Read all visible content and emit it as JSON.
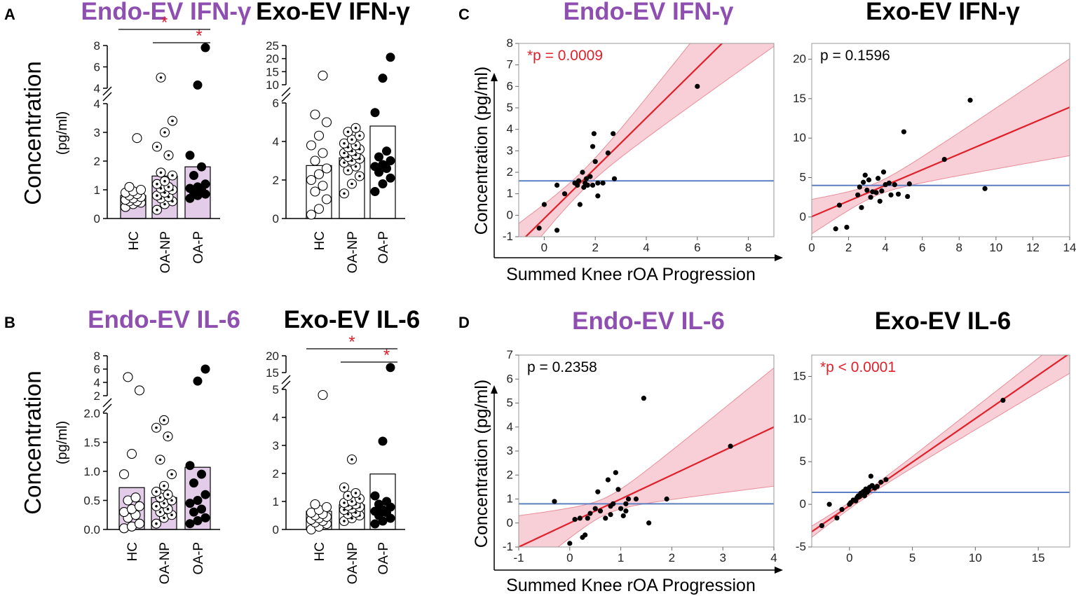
{
  "panel_labels": [
    "A",
    "B",
    "C",
    "D"
  ],
  "colors": {
    "purple": "#8E4FB0",
    "bar_fill": "#E2CCE8",
    "red": "#E0202A",
    "band": "#F7C7CF",
    "band_edge": "#E88E9B",
    "mean_line": "#5B7FC4"
  },
  "labels": {
    "concentration": "Concentration",
    "unit": "(pg/ml)",
    "concentration_unit": "Concentration (pg/ml)",
    "x_title": "Summed Knee rOA Progression",
    "star": "*"
  },
  "chart_data": [
    {
      "id": "A-endo-ifng",
      "type": "bar",
      "title": "Endo-EV IFN-γ",
      "title_color": "#8E4FB0",
      "ylabel": "Concentration (pg/ml)",
      "categories": [
        "HC",
        "OA-NP",
        "OA-P"
      ],
      "values": [
        0.8,
        1.48,
        1.8
      ],
      "marker_styles": [
        "open",
        "dot",
        "filled"
      ],
      "bar_color": "#E2CCE8",
      "y_break": {
        "lower": [
          0,
          4
        ],
        "upper": [
          4,
          8
        ]
      },
      "yticks_lower": [
        "0",
        "1",
        "2",
        "3",
        "4"
      ],
      "yticks_upper": [
        "4",
        "6",
        "8"
      ],
      "points": [
        [
          0.4,
          0.5,
          0.55,
          0.6,
          0.6,
          0.65,
          0.7,
          0.75,
          0.8,
          0.85,
          0.9,
          0.95,
          1.0,
          1.1,
          2.8
        ],
        [
          0.3,
          0.5,
          0.6,
          0.7,
          0.75,
          0.8,
          0.9,
          1.0,
          1.05,
          1.1,
          1.2,
          1.3,
          1.5,
          1.6,
          2.2,
          2.5,
          3.0,
          3.4,
          5.0
        ],
        [
          0.7,
          0.8,
          0.85,
          0.9,
          1.0,
          1.05,
          1.1,
          1.2,
          1.5,
          1.8,
          2.2,
          4.3,
          7.8
        ]
      ],
      "significance": [
        {
          "from": "HC",
          "to": "OA-P",
          "label": "*"
        },
        {
          "from": "OA-NP",
          "to": "OA-P",
          "label": "*"
        }
      ]
    },
    {
      "id": "A-exo-ifng",
      "type": "bar",
      "title": "Exo-EV IFN-γ",
      "title_color": "#000000",
      "categories": [
        "HC",
        "OA-NP",
        "OA-P"
      ],
      "values": [
        2.75,
        3.15,
        4.8
      ],
      "marker_styles": [
        "open",
        "dot",
        "filled"
      ],
      "bar_color": "#FFFFFF",
      "y_break": {
        "lower": [
          0,
          6
        ],
        "upper": [
          10,
          25
        ]
      },
      "yticks_lower": [
        "0",
        "2",
        "4",
        "6"
      ],
      "yticks_upper": [
        "10",
        "15",
        "20",
        "25"
      ],
      "points": [
        [
          0.2,
          0.5,
          1.0,
          1.4,
          1.7,
          2.0,
          2.3,
          2.6,
          3.0,
          3.4,
          3.8,
          4.3,
          5.0,
          5.4,
          13.5
        ],
        [
          1.3,
          1.8,
          2.2,
          2.5,
          2.7,
          2.9,
          3.0,
          3.1,
          3.2,
          3.3,
          3.4,
          3.5,
          3.6,
          3.7,
          3.8,
          3.9,
          4.1,
          4.3,
          4.5,
          4.7
        ],
        [
          1.4,
          1.8,
          2.1,
          2.4,
          2.6,
          2.7,
          2.8,
          3.0,
          3.2,
          3.5,
          5.5,
          12.5,
          20.5
        ]
      ],
      "significance": []
    },
    {
      "id": "B-endo-il6",
      "type": "bar",
      "title": "Endo-EV IL-6",
      "title_color": "#8E4FB0",
      "ylabel": "Concentration (pg/ml)",
      "categories": [
        "HC",
        "OA-NP",
        "OA-P"
      ],
      "values": [
        0.72,
        0.55,
        1.07
      ],
      "marker_styles": [
        "open",
        "dot",
        "filled"
      ],
      "bar_color": "#E2CCE8",
      "y_break": {
        "lower": [
          0,
          2
        ],
        "upper": [
          2,
          8
        ]
      },
      "yticks_lower": [
        "0.0",
        "0.5",
        "1.0",
        "1.5",
        "2.0"
      ],
      "yticks_upper": [
        "2",
        "4",
        "6",
        "8"
      ],
      "points": [
        [
          0.02,
          0.05,
          0.1,
          0.2,
          0.25,
          0.3,
          0.35,
          0.4,
          0.5,
          0.55,
          0.95,
          1.3,
          2.8,
          4.8
        ],
        [
          0.1,
          0.2,
          0.25,
          0.3,
          0.35,
          0.4,
          0.45,
          0.5,
          0.55,
          0.6,
          0.65,
          0.75,
          0.95,
          1.2,
          1.6,
          1.75,
          1.88
        ],
        [
          0.1,
          0.15,
          0.2,
          0.3,
          0.35,
          0.45,
          0.5,
          0.6,
          0.8,
          0.95,
          1.1,
          4.2,
          6.0
        ]
      ],
      "significance": []
    },
    {
      "id": "B-exo-il6",
      "type": "bar",
      "title": "Exo-EV IL-6",
      "title_color": "#000000",
      "categories": [
        "HC",
        "OA-NP",
        "OA-P"
      ],
      "values": [
        0.65,
        0.88,
        1.98
      ],
      "marker_styles": [
        "open",
        "dot",
        "filled"
      ],
      "bar_color": "#FFFFFF",
      "y_break": {
        "lower": [
          0,
          5
        ],
        "upper": [
          15,
          20
        ]
      },
      "yticks_lower": [
        "0",
        "1",
        "2",
        "3",
        "4",
        "5"
      ],
      "yticks_upper": [
        "15",
        "20"
      ],
      "points": [
        [
          0.0,
          0.1,
          0.2,
          0.25,
          0.3,
          0.35,
          0.4,
          0.45,
          0.5,
          0.55,
          0.6,
          0.7,
          0.8,
          0.9,
          4.8
        ],
        [
          0.3,
          0.4,
          0.5,
          0.55,
          0.6,
          0.7,
          0.75,
          0.8,
          0.85,
          0.9,
          0.95,
          1.0,
          1.1,
          1.2,
          1.3,
          1.5,
          2.5
        ],
        [
          0.2,
          0.3,
          0.4,
          0.5,
          0.6,
          0.65,
          0.7,
          0.8,
          0.9,
          1.0,
          1.2,
          3.15,
          16.5
        ]
      ],
      "significance": [
        {
          "from": "HC",
          "to": "OA-P",
          "label": "*"
        },
        {
          "from": "OA-NP",
          "to": "OA-P",
          "label": "*"
        }
      ]
    },
    {
      "id": "C-endo-ifng",
      "type": "scatter",
      "title": "Endo-EV IFN-γ",
      "title_color": "#8E4FB0",
      "xlabel": "Summed Knee rOA Progression",
      "ylabel": "Concentration (pg/ml)",
      "xlim": [
        -1,
        9
      ],
      "ylim": [
        -1,
        8
      ],
      "xticks": [
        0,
        2,
        4,
        6,
        8
      ],
      "yticks": [
        -1,
        0,
        1,
        2,
        3,
        4,
        5,
        6,
        7,
        8
      ],
      "p_label": "*p = 0.0009",
      "p_color": "#E0202A",
      "mean": 1.6,
      "fit": {
        "slope": 1.17,
        "intercept": -0.15
      },
      "band": {
        "x0": 1.5,
        "w0": 0.45,
        "k": 0.33
      },
      "points": [
        [
          -0.2,
          -0.6
        ],
        [
          0.5,
          -0.7
        ],
        [
          0,
          0.5
        ],
        [
          0.5,
          1.4
        ],
        [
          0.8,
          1.0
        ],
        [
          1.2,
          1.5
        ],
        [
          1.3,
          1.4
        ],
        [
          1.35,
          1.6
        ],
        [
          1.4,
          0.5
        ],
        [
          1.5,
          2.0
        ],
        [
          1.55,
          1.3
        ],
        [
          1.6,
          1.5
        ],
        [
          1.65,
          1.7
        ],
        [
          1.7,
          1.4
        ],
        [
          1.8,
          1.8
        ],
        [
          1.9,
          3.2
        ],
        [
          1.95,
          3.8
        ],
        [
          2.0,
          2.5
        ],
        [
          2.1,
          1.5
        ],
        [
          2.1,
          0.9
        ],
        [
          2.3,
          1.5
        ],
        [
          2.5,
          2.9
        ],
        [
          2.7,
          3.8
        ],
        [
          2.75,
          1.7
        ],
        [
          1.9,
          1.4
        ],
        [
          6.0,
          6.0
        ]
      ]
    },
    {
      "id": "C-exo-ifng",
      "type": "scatter",
      "title": "Exo-EV IFN-γ",
      "title_color": "#000000",
      "xlim": [
        0,
        14
      ],
      "ylim": [
        -2.5,
        22
      ],
      "xticks": [
        0,
        2,
        4,
        6,
        8,
        10,
        12,
        14
      ],
      "yticks": [
        0,
        5,
        10,
        15,
        20
      ],
      "p_label": "p = 0.1596",
      "p_color": "#000000",
      "mean": 4.0,
      "fit": {
        "slope": 0.99,
        "intercept": 0.05
      },
      "band": {
        "x0": 3.5,
        "w0": 0.8,
        "k": 0.58
      },
      "points": [
        [
          1.3,
          -1.5
        ],
        [
          1.5,
          1.5
        ],
        [
          1.9,
          -1.3
        ],
        [
          2.5,
          2.8
        ],
        [
          2.6,
          3.8
        ],
        [
          2.7,
          1.2
        ],
        [
          2.8,
          4.4
        ],
        [
          2.9,
          5.3
        ],
        [
          3.0,
          3.4
        ],
        [
          3.1,
          4.7
        ],
        [
          3.2,
          2.5
        ],
        [
          3.3,
          3.2
        ],
        [
          3.5,
          3.1
        ],
        [
          3.6,
          4.9
        ],
        [
          3.7,
          2.0
        ],
        [
          3.8,
          3.3
        ],
        [
          3.9,
          5.7
        ],
        [
          4.0,
          4.1
        ],
        [
          4.2,
          4.3
        ],
        [
          4.3,
          2.8
        ],
        [
          4.5,
          4.1
        ],
        [
          4.7,
          2.9
        ],
        [
          5.0,
          10.8
        ],
        [
          5.2,
          2.6
        ],
        [
          5.3,
          4.2
        ],
        [
          7.2,
          7.3
        ],
        [
          8.6,
          14.8
        ],
        [
          9.4,
          3.6
        ]
      ]
    },
    {
      "id": "D-endo-il6",
      "type": "scatter",
      "title": "Endo-EV IL-6",
      "title_color": "#8E4FB0",
      "xlabel": "Summed Knee rOA Progression",
      "ylabel": "Concentration (pg/ml)",
      "xlim": [
        -1,
        4
      ],
      "ylim": [
        -1,
        7
      ],
      "xticks": [
        -1,
        0,
        1,
        2,
        3,
        4
      ],
      "yticks": [
        -1,
        0,
        1,
        2,
        3,
        4,
        5,
        6,
        7
      ],
      "p_label": "p = 0.2358",
      "p_color": "#000000",
      "mean": 0.8,
      "fit": {
        "slope": 1.0,
        "intercept": 0.0
      },
      "band": {
        "x0": 0.7,
        "w0": 0.35,
        "k": 0.74
      },
      "points": [
        [
          -0.3,
          0.9
        ],
        [
          0.0,
          -0.85
        ],
        [
          0.1,
          0.15
        ],
        [
          0.2,
          0.2
        ],
        [
          0.25,
          -0.6
        ],
        [
          0.3,
          -0.5
        ],
        [
          0.35,
          0.2
        ],
        [
          0.4,
          0.4
        ],
        [
          0.5,
          0.6
        ],
        [
          0.55,
          1.3
        ],
        [
          0.6,
          0.5
        ],
        [
          0.7,
          0.2
        ],
        [
          0.75,
          1.8
        ],
        [
          0.8,
          0.7
        ],
        [
          0.85,
          0.8
        ],
        [
          0.9,
          2.1
        ],
        [
          0.95,
          1.4
        ],
        [
          1.0,
          0.6
        ],
        [
          1.05,
          0.3
        ],
        [
          1.1,
          0.8
        ],
        [
          1.15,
          1.0
        ],
        [
          1.3,
          1.0
        ],
        [
          1.45,
          5.2
        ],
        [
          1.55,
          0.0
        ],
        [
          1.9,
          1.0
        ],
        [
          3.15,
          3.2
        ],
        [
          1.1,
          0.5
        ],
        [
          0.8,
          0.35
        ]
      ]
    },
    {
      "id": "D-exo-il6",
      "type": "scatter",
      "title": "Exo-EV IL-6",
      "title_color": "#000000",
      "xlim": [
        -3,
        17.5
      ],
      "ylim": [
        -5,
        17.5
      ],
      "xticks": [
        0,
        5,
        10,
        15
      ],
      "yticks": [
        -5,
        0,
        5,
        10,
        15
      ],
      "p_label": "*p < 0.0001",
      "p_color": "#E0202A",
      "mean": 1.4,
      "fit": {
        "slope": 1.02,
        "intercept": -0.15
      },
      "band": {
        "x0": 1.0,
        "w0": 0.35,
        "k": 0.14
      },
      "points": [
        [
          -2.2,
          -2.5
        ],
        [
          -1.6,
          0.0
        ],
        [
          -1.0,
          -1.6
        ],
        [
          -0.6,
          -0.6
        ],
        [
          0.0,
          0.0
        ],
        [
          0.1,
          0.2
        ],
        [
          0.3,
          0.5
        ],
        [
          0.5,
          0.4
        ],
        [
          0.6,
          0.8
        ],
        [
          0.7,
          1.0
        ],
        [
          0.8,
          0.9
        ],
        [
          0.9,
          1.3
        ],
        [
          1.0,
          1.2
        ],
        [
          1.1,
          1.5
        ],
        [
          1.2,
          1.0
        ],
        [
          1.3,
          1.8
        ],
        [
          1.4,
          1.4
        ],
        [
          1.5,
          1.6
        ],
        [
          1.6,
          2.0
        ],
        [
          1.7,
          3.3
        ],
        [
          1.8,
          2.2
        ],
        [
          2.0,
          1.9
        ],
        [
          2.2,
          2.1
        ],
        [
          2.5,
          2.6
        ],
        [
          2.9,
          2.9
        ],
        [
          12.2,
          12.2
        ]
      ]
    }
  ]
}
